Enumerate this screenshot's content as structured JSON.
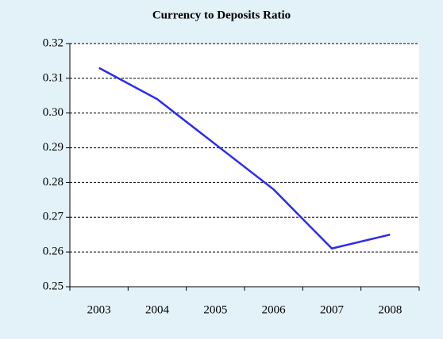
{
  "chart_data": {
    "type": "line",
    "title": "Currency to Deposits Ratio",
    "categories": [
      "2003",
      "2004",
      "2005",
      "2006",
      "2007",
      "2008"
    ],
    "values": [
      0.313,
      0.304,
      0.291,
      0.278,
      0.261,
      0.265
    ],
    "color": "#2b2bf0",
    "ylim": [
      0.25,
      0.32
    ],
    "yticks": [
      0.25,
      0.26,
      0.27,
      0.28,
      0.29,
      {
        "value": 0.3,
        "label": "0.30"
      },
      0.31,
      0.32
    ],
    "grid": true
  }
}
